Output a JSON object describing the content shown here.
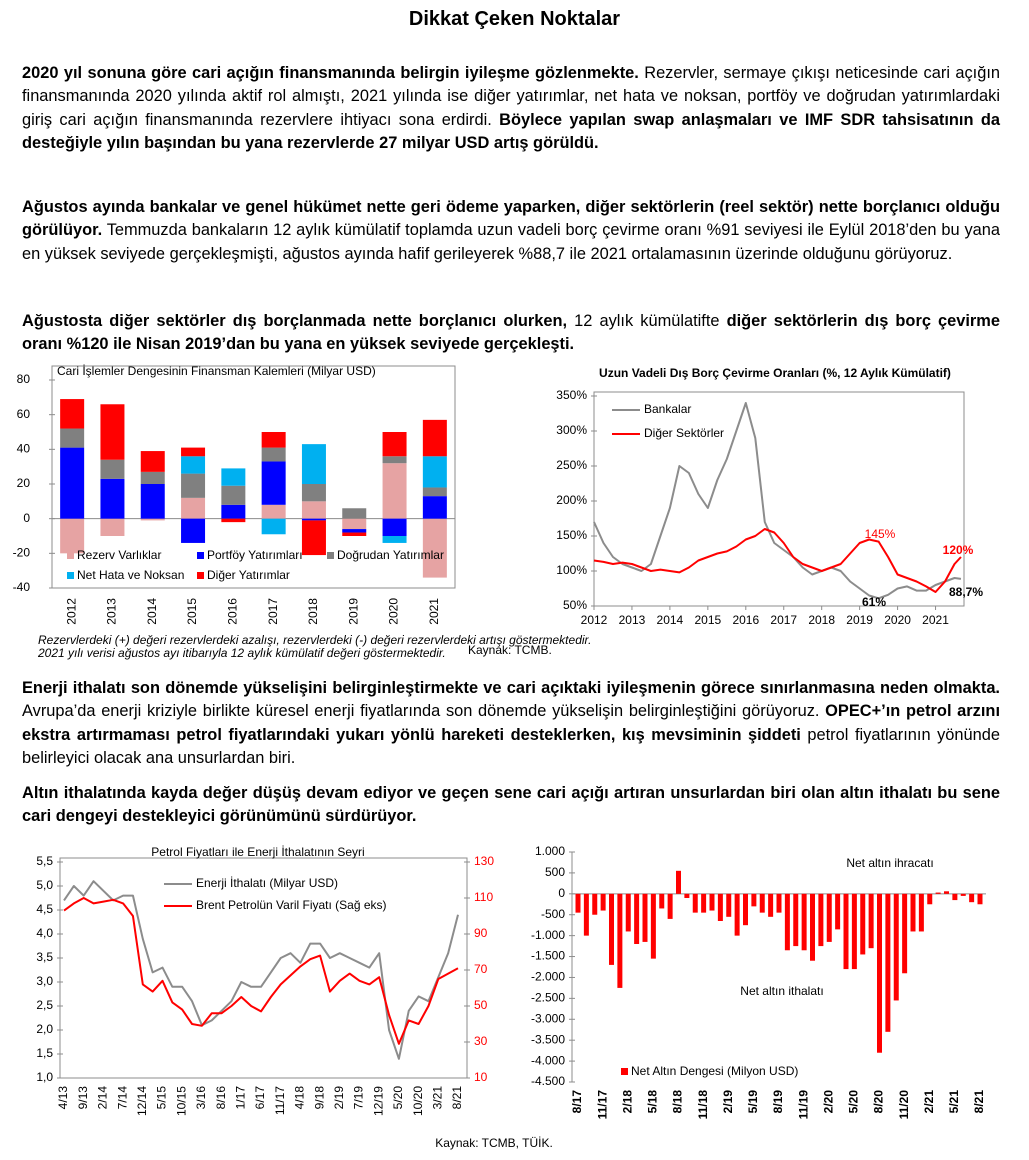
{
  "document": {
    "title": "Dikkat Çeken Noktalar",
    "paragraphs": [
      {
        "runs": [
          {
            "text": "2020 yıl sonuna göre cari açığın finansmanında belirgin iyileşme gözlenmekte.",
            "bold": true
          },
          {
            "text": " Rezervler, sermaye çıkışı neticesinde cari açığın finansmanında 2020 yılında aktif rol almıştı, 2021 yılında ise diğer yatırımlar, net hata ve noksan, portföy ve doğrudan yatırımlardaki giriş cari açığın finansmanında rezervlere ihtiyacı sona erdirdi.",
            "bold": false
          },
          {
            "text": " Böylece yapılan swap anlaşmaları ve IMF SDR tahsisatının da desteğiyle yılın başından bu yana rezervlerde 27 milyar USD artış görüldü.",
            "bold": true
          }
        ]
      },
      {
        "runs": [
          {
            "text": "Ağustos ayında bankalar ve genel hükümet nette geri ödeme yaparken, diğer sektörlerin (reel sektör) nette borçlanıcı olduğu görülüyor.",
            "bold": true
          },
          {
            "text": " Temmuzda bankaların 12 aylık kümülatif toplamda uzun vadeli borç çevirme oranı %91 seviyesi ile Eylül 2018’den bu yana en yüksek seviyede gerçekleşmişti, ağustos ayında hafif gerileyerek %88,7 ile 2021 ortalamasının üzerinde olduğunu görüyoruz.",
            "bold": false
          }
        ]
      },
      {
        "runs": [
          {
            "text": "Ağustosta diğer sektörler dış borçlanmada nette borçlanıcı olurken,",
            "bold": true
          },
          {
            "text": " 12 aylık kümülatifte ",
            "bold": false
          },
          {
            "text": "diğer sektörlerin dış borç çevirme oranı %120 ile Nisan 2019’dan bu yana en yüksek seviyede gerçekleşti.",
            "bold": true
          }
        ]
      },
      {
        "runs": [
          {
            "text": "Enerji ithalatı son dönemde yükselişini belirginleştirmekte ve cari açıktaki iyileşmenin görece sınırlanmasına neden olmakta.",
            "bold": true
          },
          {
            "text": " Avrupa’da enerji kriziyle birlikte küresel enerji fiyatlarında son dönemde yükselişin belirginleştiğini görüyoruz. ",
            "bold": false
          },
          {
            "text": "OPEC+’ın petrol arzını ekstra artırmaması petrol fiyatlarındaki yukarı yönlü hareketi desteklerken, kış mevsiminin şiddeti",
            "bold": true
          },
          {
            "text": " petrol fiyatlarının yönünde belirleyici olacak ana unsurlardan biri.",
            "bold": false
          }
        ]
      },
      {
        "runs": [
          {
            "text": "Altın ithalatında kayda değer düşüş devam ediyor ve geçen sene cari açığı artıran unsurlardan biri olan altın ithalatı bu sene cari dengeyi destekleyici görünümünü sürdürüyor.",
            "bold": true
          }
        ]
      }
    ],
    "source": "Kaynak: TCMB, TÜİK."
  },
  "chart_data": [
    {
      "type": "stacked_bar",
      "title": "Cari İşlemler Dengesinin Finansman Kalemleri (Milyar USD)",
      "categories": [
        "2012",
        "2013",
        "2014",
        "2015",
        "2016",
        "2017",
        "2018",
        "2019",
        "2020",
        "2021"
      ],
      "series": [
        {
          "name": "Rezerv Varlıklar",
          "color": "#e6a3a3",
          "values": [
            -20,
            -10,
            -1,
            12,
            0,
            8,
            10,
            -6,
            32,
            -34
          ]
        },
        {
          "name": "Portföy Yatırımları",
          "color": "#0000ff",
          "values": [
            41,
            23,
            20,
            -14,
            8,
            25,
            -1,
            -2,
            -10,
            13
          ]
        },
        {
          "name": "Doğrudan Yatırımlar",
          "color": "#808080",
          "values": [
            11,
            11,
            7,
            14,
            11,
            8,
            10,
            6,
            4,
            5
          ]
        },
        {
          "name": "Net Hata ve Noksan",
          "color": "#00b0f0",
          "values": [
            0,
            0,
            0,
            10,
            10,
            -9,
            23,
            0,
            -4,
            18
          ]
        },
        {
          "name": "Diğer Yatırımlar",
          "color": "#ff0000",
          "values": [
            17,
            32,
            12,
            5,
            -2,
            9,
            -20,
            -2,
            14,
            21
          ]
        }
      ],
      "ylim": [
        -40,
        80
      ],
      "yticks": [
        -40,
        -20,
        0,
        20,
        40,
        60,
        80
      ],
      "legend": "bottom",
      "notes": [
        "Rezervlerdeki (+) değeri rezervlerdeki azalışı, rezervlerdeki (-) değeri rezervlerdeki artışı göstermektedir.",
        "2021 yılı verisi ağustos ayı itibarıyla 12 aylık kümülatif değeri göstermektedir."
      ],
      "source": "Kaynak: TCMB."
    },
    {
      "type": "line",
      "title": "Uzun Vadeli Dış Borç Çevirme Oranları (%, 12 Aylık Kümülatif)",
      "x": [
        2012,
        2012.25,
        2012.5,
        2012.75,
        2013,
        2013.25,
        2013.5,
        2013.75,
        2014,
        2014.25,
        2014.5,
        2014.75,
        2015,
        2015.25,
        2015.5,
        2015.75,
        2016,
        2016.25,
        2016.5,
        2016.75,
        2017,
        2017.25,
        2017.5,
        2017.75,
        2018,
        2018.25,
        2018.5,
        2018.75,
        2019,
        2019.25,
        2019.5,
        2019.75,
        2020,
        2020.25,
        2020.5,
        2020.75,
        2021,
        2021.25,
        2021.5,
        2021.67
      ],
      "series": [
        {
          "name": "Bankalar",
          "color": "#8c8c8c",
          "values": [
            170,
            140,
            120,
            110,
            105,
            100,
            110,
            150,
            190,
            250,
            240,
            210,
            190,
            230,
            260,
            300,
            340,
            290,
            170,
            140,
            130,
            120,
            105,
            95,
            100,
            105,
            100,
            85,
            75,
            65,
            61,
            66,
            75,
            78,
            72,
            72,
            80,
            85,
            90,
            88.7
          ]
        },
        {
          "name": "Diğer Sektörler",
          "color": "#ff0000",
          "values": [
            115,
            113,
            110,
            112,
            110,
            105,
            100,
            102,
            100,
            98,
            105,
            115,
            120,
            125,
            128,
            135,
            145,
            150,
            160,
            155,
            140,
            120,
            110,
            105,
            100,
            105,
            110,
            125,
            140,
            145,
            142,
            120,
            95,
            90,
            85,
            78,
            70,
            85,
            110,
            120
          ]
        }
      ],
      "xlim": [
        2012,
        2021.75
      ],
      "xticks": [
        2012,
        2013,
        2014,
        2015,
        2016,
        2017,
        2018,
        2019,
        2020,
        2021
      ],
      "ylim": [
        50,
        350
      ],
      "yticks": [
        {
          "value": 50,
          "label": "50%"
        },
        {
          "value": 100,
          "label": "100%"
        },
        {
          "value": 150,
          "label": "150%"
        },
        {
          "value": 200,
          "label": "200%"
        },
        {
          "value": 250,
          "label": "250%"
        },
        {
          "value": 300,
          "label": "300%"
        },
        {
          "value": 350,
          "label": "350%"
        }
      ],
      "legend": "top-left",
      "annotations": [
        {
          "text": "145%",
          "color": "#ff0000"
        },
        {
          "text": "120%",
          "color": "#ff0000"
        },
        {
          "text": "61%",
          "color": "#000000"
        },
        {
          "text": "88,7%",
          "color": "#000000"
        }
      ]
    },
    {
      "type": "line",
      "title": "Petrol Fiyatları ile Enerji İthalatının Seyri",
      "categories": [
        "4/13",
        null,
        "9/13",
        null,
        "2/14",
        null,
        "7/14",
        null,
        "12/14",
        null,
        "5/15",
        null,
        "10/15",
        null,
        "3/16",
        null,
        "8/16",
        null,
        "1/17",
        null,
        "6/17",
        null,
        "11/17",
        null,
        "4/18",
        null,
        "9/18",
        null,
        "2/19",
        null,
        "7/19",
        null,
        "12/19",
        null,
        "5/20",
        null,
        "10/20",
        null,
        "3/21",
        null,
        "8/21"
      ],
      "series": [
        {
          "name": "Enerji İthalatı (Milyar USD)",
          "color": "#8c8c8c",
          "values": [
            4.7,
            5.0,
            4.8,
            5.1,
            4.9,
            4.7,
            4.8,
            4.8,
            3.9,
            3.2,
            3.3,
            2.9,
            2.9,
            2.6,
            2.1,
            2.2,
            2.4,
            2.6,
            3.0,
            2.9,
            2.9,
            3.2,
            3.5,
            3.6,
            3.4,
            3.8,
            3.8,
            3.5,
            3.6,
            3.5,
            3.4,
            3.3,
            3.6,
            2.0,
            1.4,
            2.4,
            2.7,
            2.6,
            3.1,
            3.6,
            4.4
          ]
        },
        {
          "name": "Brent Petrolün Varil Fiyatı (Sağ eks)",
          "color": "#ff0000",
          "axis": "y2",
          "values": [
            103,
            107,
            110,
            107,
            108,
            109,
            107,
            100,
            62,
            58,
            64,
            52,
            48,
            40,
            39,
            46,
            46,
            50,
            55,
            50,
            47,
            55,
            62,
            67,
            72,
            76,
            78,
            58,
            64,
            68,
            64,
            62,
            66,
            45,
            29,
            42,
            40,
            50,
            65,
            68,
            71
          ]
        }
      ],
      "ylim": [
        1.0,
        5.5
      ],
      "yticks": [
        {
          "value": 1.0,
          "label": "1,0"
        },
        {
          "value": 1.5,
          "label": "1,5"
        },
        {
          "value": 2.0,
          "label": "2,0"
        },
        {
          "value": 2.5,
          "label": "2,5"
        },
        {
          "value": 3.0,
          "label": "3,0"
        },
        {
          "value": 3.5,
          "label": "3,5"
        },
        {
          "value": 4.0,
          "label": "4,0"
        },
        {
          "value": 4.5,
          "label": "4,5"
        },
        {
          "value": 5.0,
          "label": "5,0"
        },
        {
          "value": 5.5,
          "label": "5,5"
        }
      ],
      "y2lim": [
        10,
        130
      ],
      "y2ticks": [
        10,
        30,
        50,
        70,
        90,
        110,
        130
      ],
      "legend": "top-left"
    },
    {
      "type": "bar",
      "categories": [
        "8/17",
        null,
        null,
        "11/17",
        null,
        null,
        "2/18",
        null,
        null,
        "5/18",
        null,
        null,
        "8/18",
        null,
        null,
        "11/18",
        null,
        null,
        "2/19",
        null,
        null,
        "5/19",
        null,
        null,
        "8/19",
        null,
        null,
        "11/19",
        null,
        null,
        "2/20",
        null,
        null,
        "5/20",
        null,
        null,
        "8/20",
        null,
        null,
        "11/20",
        null,
        null,
        "2/21",
        null,
        null,
        "5/21",
        null,
        null,
        "8/21"
      ],
      "series": [
        {
          "name": "Net Altın Dengesi (Milyon USD)",
          "color": "#ff0000",
          "values": [
            -450,
            -1000,
            -500,
            -400,
            -1700,
            -2250,
            -900,
            -1200,
            -1150,
            -1550,
            -350,
            -600,
            550,
            -100,
            -450,
            -450,
            -400,
            -650,
            -550,
            -1000,
            -750,
            -300,
            -450,
            -550,
            -450,
            -1350,
            -1250,
            -1350,
            -1600,
            -1250,
            -1150,
            -850,
            -1800,
            -1800,
            -1450,
            -1300,
            -3800,
            -3300,
            -2550,
            -1900,
            -900,
            -900,
            -250,
            30,
            60,
            -150,
            -50,
            -200,
            -250
          ]
        }
      ],
      "ylim": [
        -4500,
        1000
      ],
      "yticks": [
        {
          "value": 1000,
          "label": "1.000"
        },
        500,
        0,
        -500,
        {
          "value": -1000,
          "label": "-1.000"
        },
        {
          "value": -1500,
          "label": "-1.500"
        },
        {
          "value": -2000,
          "label": "-2.000"
        },
        {
          "value": -2500,
          "label": "-2.500"
        },
        {
          "value": -3000,
          "label": "-3.000"
        },
        {
          "value": -3500,
          "label": "-3.500"
        },
        {
          "value": -4000,
          "label": "-4.000"
        },
        {
          "value": -4500,
          "label": "-4.500"
        }
      ],
      "legend": "bottom-left",
      "annotations": [
        {
          "text": "Net altın ihracatı",
          "color": "#000000"
        },
        {
          "text": "Net altın ithalatı",
          "color": "#000000"
        }
      ]
    }
  ]
}
